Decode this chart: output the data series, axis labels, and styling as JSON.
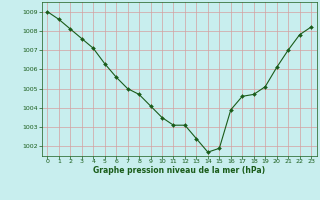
{
  "x": [
    0,
    1,
    2,
    3,
    4,
    5,
    6,
    7,
    8,
    9,
    10,
    11,
    12,
    13,
    14,
    15,
    16,
    17,
    18,
    19,
    20,
    21,
    22,
    23
  ],
  "y": [
    1009.0,
    1008.6,
    1008.1,
    1007.6,
    1007.1,
    1006.3,
    1005.6,
    1005.0,
    1004.7,
    1004.1,
    1003.5,
    1003.1,
    1003.1,
    1002.4,
    1001.7,
    1001.9,
    1003.9,
    1004.6,
    1004.7,
    1005.1,
    1006.1,
    1007.0,
    1007.8,
    1008.2
  ],
  "line_color": "#1a5c1a",
  "marker_color": "#1a5c1a",
  "bg_color": "#c8eeee",
  "grid_color": "#d4a0a0",
  "xlabel": "Graphe pression niveau de la mer (hPa)",
  "xlabel_color": "#1a5c1a",
  "tick_color": "#1a5c1a",
  "ylim": [
    1001.5,
    1009.5
  ],
  "xlim": [
    -0.5,
    23.5
  ],
  "yticks": [
    1002,
    1003,
    1004,
    1005,
    1006,
    1007,
    1008,
    1009
  ],
  "xticks": [
    0,
    1,
    2,
    3,
    4,
    5,
    6,
    7,
    8,
    9,
    10,
    11,
    12,
    13,
    14,
    15,
    16,
    17,
    18,
    19,
    20,
    21,
    22,
    23
  ],
  "figsize": [
    3.2,
    2.0
  ],
  "dpi": 100
}
